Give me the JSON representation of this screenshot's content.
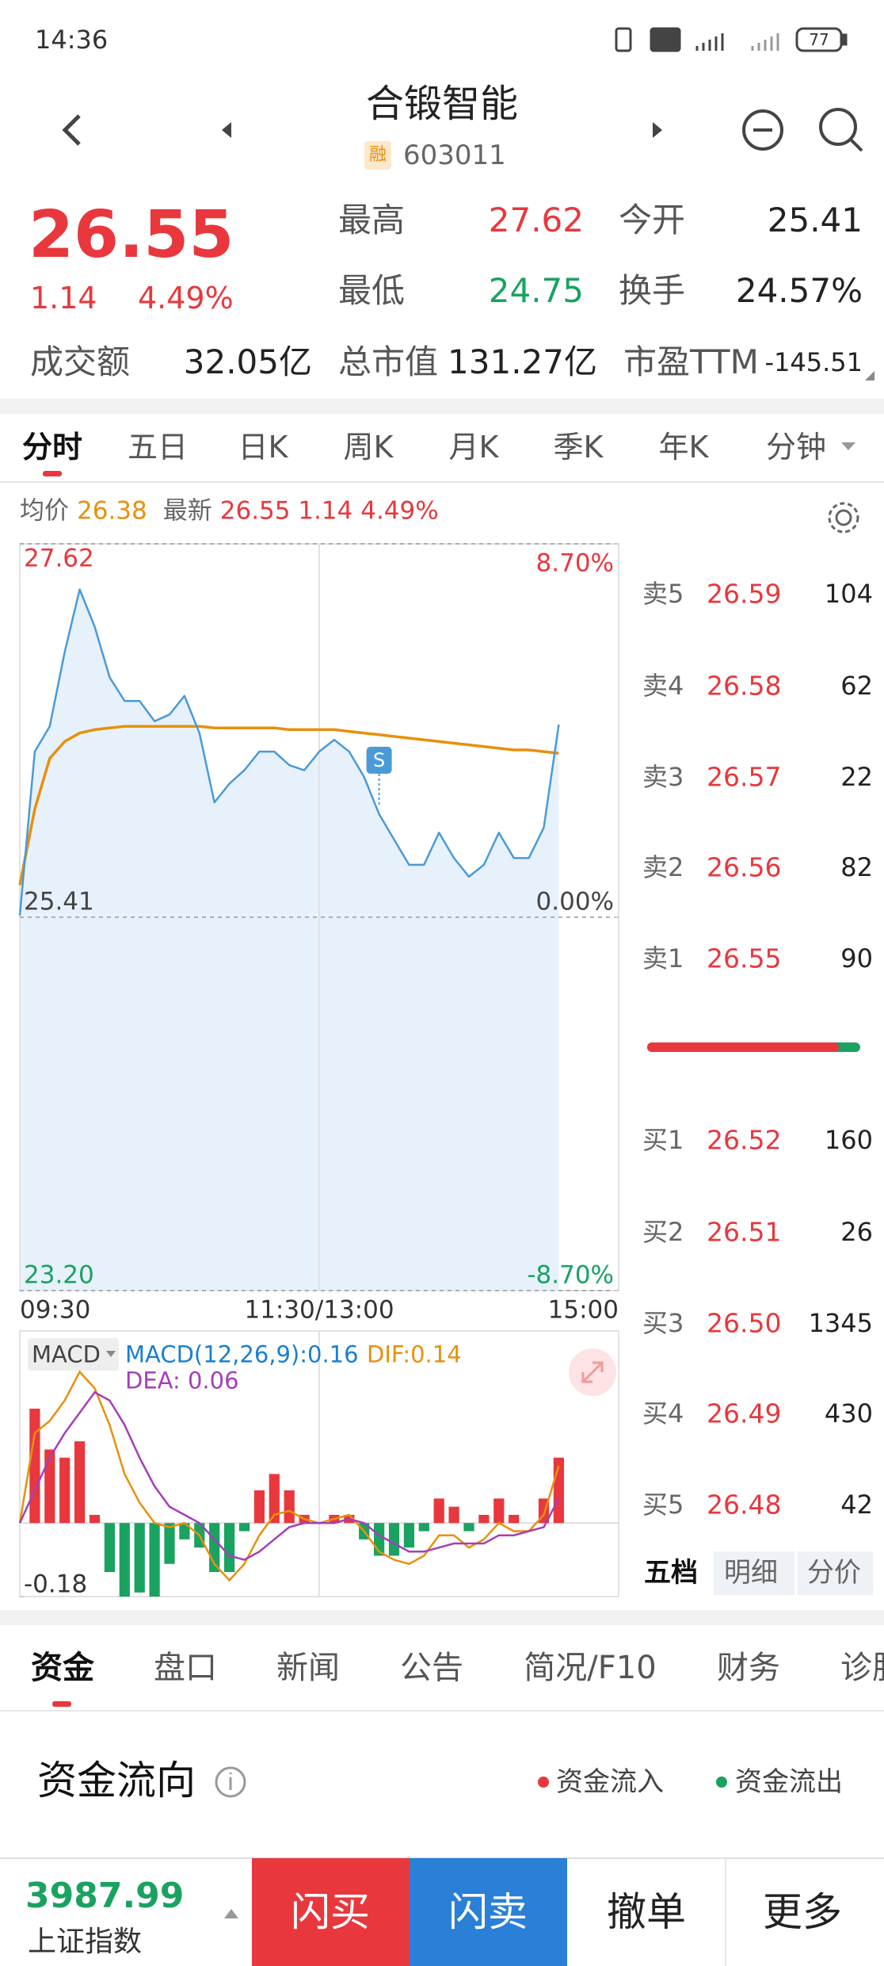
{
  "status_bar": {
    "time": "14:36",
    "battery": "77"
  },
  "header": {
    "title": "合锻智能",
    "badge": "融",
    "code": "603011"
  },
  "quote": {
    "price": "26.55",
    "change": "1.14",
    "change_pct": "4.49%",
    "color": "#e8383d",
    "stats": [
      {
        "label": "最高",
        "value": "27.62",
        "color": "#e8383d"
      },
      {
        "label": "今开",
        "value": "25.41",
        "color": "#222222"
      },
      {
        "label": "最低",
        "value": "24.75",
        "color": "#1aa260"
      },
      {
        "label": "换手",
        "value": "24.57%",
        "color": "#222222"
      },
      {
        "label": "成交额",
        "value": "32.05亿",
        "color": "#222222"
      },
      {
        "label": "总市值",
        "value": "131.27亿",
        "color": "#222222"
      },
      {
        "label": "市盈TTM",
        "value": "-145.51",
        "color": "#222222"
      }
    ]
  },
  "chart_tabs": {
    "items": [
      "分时",
      "五日",
      "日K",
      "周K",
      "月K",
      "季K",
      "年K",
      "分钟"
    ],
    "active": 0
  },
  "chart_data": [
    {
      "type": "line",
      "x": [
        0,
        6,
        12,
        18,
        24,
        30,
        36,
        42,
        48,
        54,
        60,
        66,
        72,
        78,
        84,
        90,
        96,
        102,
        108,
        114,
        120,
        126,
        132,
        138,
        144,
        150,
        156,
        162,
        168,
        174,
        180,
        186,
        192,
        198,
        204,
        210,
        216
      ],
      "xlim": [
        0,
        240
      ],
      "xticks": [
        {
          "value": 0,
          "label": "09:30"
        },
        {
          "value": 120,
          "label": "11:30/13:00"
        },
        {
          "value": 240,
          "label": "15:00"
        }
      ],
      "ylim": [
        23.2,
        27.62
      ],
      "yticks": [
        {
          "value": 23.2,
          "label": "23.20"
        },
        {
          "value": 25.41,
          "label": "25.41"
        },
        {
          "value": 27.62,
          "label": "27.62"
        }
      ],
      "y2lim": [
        -8.7,
        8.7
      ],
      "y2ticks": [
        {
          "value": -8.7,
          "label": "-8.70%"
        },
        {
          "value": 0,
          "label": "0.00%"
        },
        {
          "value": 8.7,
          "label": "8.70%"
        }
      ],
      "series": [
        {
          "name": "均价",
          "legend_text": "26.38",
          "color": "#e8900c",
          "values": [
            25.6,
            26.05,
            26.35,
            26.45,
            26.5,
            26.52,
            26.53,
            26.54,
            26.54,
            26.54,
            26.54,
            26.54,
            26.54,
            26.53,
            26.53,
            26.53,
            26.53,
            26.53,
            26.52,
            26.52,
            26.52,
            26.52,
            26.51,
            26.5,
            26.49,
            26.48,
            26.47,
            26.46,
            26.45,
            26.44,
            26.43,
            26.42,
            26.41,
            26.4,
            26.4,
            26.39,
            26.38
          ]
        },
        {
          "name": "最新",
          "legend_text": "26.55 1.14 4.49%",
          "color": "#4a9ad8",
          "area_color": "#e7f1fb",
          "values": [
            25.42,
            26.39,
            26.54,
            26.98,
            27.35,
            27.13,
            26.83,
            26.69,
            26.69,
            26.57,
            26.61,
            26.72,
            26.5,
            26.09,
            26.2,
            26.28,
            26.39,
            26.39,
            26.31,
            26.28,
            26.39,
            26.46,
            26.39,
            26.24,
            26.02,
            25.87,
            25.72,
            25.72,
            25.91,
            25.76,
            25.65,
            25.72,
            25.91,
            25.76,
            25.76,
            25.94,
            26.55
          ]
        }
      ],
      "annotations": [
        {
          "x": 144,
          "y": 26.25,
          "label": "S",
          "color": "#4a9ad8"
        }
      ],
      "up_color": "#e8383d",
      "down_color": "#1aa260",
      "grid": true
    },
    {
      "type": "macd",
      "indicator": "MACD",
      "x": [
        0,
        6,
        12,
        18,
        24,
        30,
        36,
        42,
        48,
        54,
        60,
        66,
        72,
        78,
        84,
        90,
        96,
        102,
        108,
        114,
        120,
        126,
        132,
        138,
        144,
        150,
        156,
        162,
        168,
        174,
        180,
        186,
        192,
        198,
        204,
        210,
        216
      ],
      "xlim": [
        0,
        240
      ],
      "ylim": [
        -0.18,
        0.47
      ],
      "yticks": [
        {
          "value": -0.18,
          "label": "-0.18"
        }
      ],
      "series": [
        {
          "name": "MACD(12,26,9):0.16",
          "color": "#1a7fd0",
          "up_color": "#e8383d",
          "down_color": "#1aa260",
          "values": [
            0,
            0.28,
            0.18,
            0.16,
            0.2,
            0.02,
            -0.12,
            -0.18,
            -0.17,
            -0.18,
            -0.1,
            -0.04,
            -0.06,
            -0.12,
            -0.12,
            -0.02,
            0.08,
            0.12,
            0.08,
            0.02,
            0,
            0.02,
            0.02,
            -0.04,
            -0.08,
            -0.08,
            -0.06,
            -0.02,
            0.06,
            0.04,
            -0.02,
            0.02,
            0.06,
            0.02,
            0,
            0.06,
            0.16
          ]
        },
        {
          "name": "DIF:0.14",
          "color": "#e8900c",
          "values": [
            0,
            0.22,
            0.25,
            0.3,
            0.37,
            0.33,
            0.24,
            0.12,
            0.05,
            0,
            -0.01,
            0,
            -0.03,
            -0.1,
            -0.14,
            -0.1,
            -0.03,
            0.02,
            0.03,
            0.01,
            0,
            0.01,
            0.02,
            -0.02,
            -0.07,
            -0.09,
            -0.1,
            -0.08,
            -0.03,
            -0.03,
            -0.06,
            -0.04,
            0,
            -0.02,
            -0.02,
            0.02,
            0.14
          ]
        },
        {
          "name": "DEA: 0.06",
          "color": "#a43fb8",
          "values": [
            0,
            0.08,
            0.16,
            0.22,
            0.27,
            0.32,
            0.3,
            0.24,
            0.16,
            0.09,
            0.04,
            0.02,
            0,
            -0.04,
            -0.08,
            -0.09,
            -0.07,
            -0.04,
            -0.01,
            0,
            0,
            0,
            0.01,
            0,
            -0.03,
            -0.05,
            -0.07,
            -0.07,
            -0.06,
            -0.05,
            -0.05,
            -0.05,
            -0.03,
            -0.03,
            -0.02,
            -0.01,
            0.06
          ]
        }
      ]
    }
  ],
  "order_book": {
    "asks": [
      {
        "label": "卖5",
        "price": "26.59",
        "volume": "104"
      },
      {
        "label": "卖4",
        "price": "26.58",
        "volume": "62"
      },
      {
        "label": "卖3",
        "price": "26.57",
        "volume": "22"
      },
      {
        "label": "卖2",
        "price": "26.56",
        "volume": "82"
      },
      {
        "label": "卖1",
        "price": "26.55",
        "volume": "90"
      }
    ],
    "bids": [
      {
        "label": "买1",
        "price": "26.52",
        "volume": "160"
      },
      {
        "label": "买2",
        "price": "26.51",
        "volume": "26"
      },
      {
        "label": "买3",
        "price": "26.50",
        "volume": "1345"
      },
      {
        "label": "买4",
        "price": "26.49",
        "volume": "430"
      },
      {
        "label": "买5",
        "price": "26.48",
        "volume": "42"
      }
    ],
    "balance": 90,
    "tabs": [
      "五档",
      "明细",
      "分价"
    ]
  },
  "info_tabs": [
    "资金",
    "盘口",
    "新闻",
    "公告",
    "简况/F10",
    "财务",
    "诊股"
  ],
  "fund_flow": {
    "title": "资金流向",
    "inflow": "资金流入",
    "outflow": "资金流出"
  },
  "bottom_bar": {
    "index_value": "3987.99",
    "index_name": "上证指数",
    "buttons": [
      "闪买",
      "闪卖",
      "撤单",
      "更多"
    ]
  }
}
